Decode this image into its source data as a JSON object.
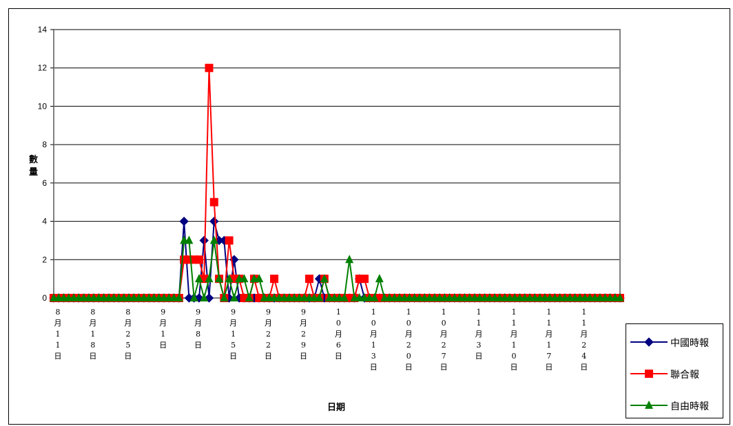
{
  "chart_data": {
    "type": "line",
    "title": "",
    "xlabel": "日期",
    "ylabel": "數量",
    "ylim": [
      0,
      14
    ],
    "yticks": [
      0,
      2,
      4,
      6,
      8,
      10,
      12,
      14
    ],
    "grid": true,
    "legend_position": "bottom-right",
    "x_tick_labels": [
      "8月11日",
      "8月18日",
      "8月25日",
      "9月1日",
      "9月8日",
      "9月15日",
      "9月22日",
      "9月29日",
      "10月6日",
      "10月13日",
      "10月20日",
      "10月27日",
      "11月3日",
      "11月10日",
      "11月17日",
      "11月24日"
    ],
    "x_start_date": "2007-08-11",
    "x_end_date": "2007-12-02",
    "series": [
      {
        "name": "中國時報",
        "color": "#000080",
        "marker": "diamond",
        "points": [
          {
            "date": "2007-09-06",
            "value": 4
          },
          {
            "date": "2007-09-07",
            "value": 0
          },
          {
            "date": "2007-09-10",
            "value": 3
          },
          {
            "date": "2007-09-12",
            "value": 4
          },
          {
            "date": "2007-09-13",
            "value": 3
          },
          {
            "date": "2007-09-14",
            "value": 3
          },
          {
            "date": "2007-09-15",
            "value": 0
          },
          {
            "date": "2007-09-16",
            "value": 2
          },
          {
            "date": "2007-09-17",
            "value": 0
          },
          {
            "date": "2007-10-03",
            "value": 1
          },
          {
            "date": "2007-10-04",
            "value": 0
          },
          {
            "date": "2007-10-11",
            "value": 1
          },
          {
            "date": "2007-10-12",
            "value": 0
          }
        ]
      },
      {
        "name": "聯合報",
        "color": "#ff0000",
        "marker": "square",
        "points": [
          {
            "date": "2007-09-05",
            "value": 0
          },
          {
            "date": "2007-09-06",
            "value": 2
          },
          {
            "date": "2007-09-07",
            "value": 2
          },
          {
            "date": "2007-09-08",
            "value": 2
          },
          {
            "date": "2007-09-09",
            "value": 2
          },
          {
            "date": "2007-09-10",
            "value": 1
          },
          {
            "date": "2007-09-11",
            "value": 12
          },
          {
            "date": "2007-09-12",
            "value": 5
          },
          {
            "date": "2007-09-13",
            "value": 1
          },
          {
            "date": "2007-09-14",
            "value": 0
          },
          {
            "date": "2007-09-15",
            "value": 3
          },
          {
            "date": "2007-09-16",
            "value": 1
          },
          {
            "date": "2007-09-17",
            "value": 1
          },
          {
            "date": "2007-09-18",
            "value": 0
          },
          {
            "date": "2007-09-20",
            "value": 1
          },
          {
            "date": "2007-09-21",
            "value": 0
          },
          {
            "date": "2007-09-24",
            "value": 1
          },
          {
            "date": "2007-09-25",
            "value": 0
          },
          {
            "date": "2007-10-01",
            "value": 1
          },
          {
            "date": "2007-10-02",
            "value": 0
          },
          {
            "date": "2007-10-04",
            "value": 1
          },
          {
            "date": "2007-10-05",
            "value": 0
          },
          {
            "date": "2007-10-11",
            "value": 1
          },
          {
            "date": "2007-10-12",
            "value": 1
          },
          {
            "date": "2007-10-13",
            "value": 0
          }
        ]
      },
      {
        "name": "自由時報",
        "color": "#008000",
        "marker": "triangle",
        "points": [
          {
            "date": "2007-09-05",
            "value": 0
          },
          {
            "date": "2007-09-06",
            "value": 3
          },
          {
            "date": "2007-09-07",
            "value": 3
          },
          {
            "date": "2007-09-08",
            "value": 0
          },
          {
            "date": "2007-09-09",
            "value": 1
          },
          {
            "date": "2007-09-10",
            "value": 0
          },
          {
            "date": "2007-09-11",
            "value": 1
          },
          {
            "date": "2007-09-12",
            "value": 3
          },
          {
            "date": "2007-09-13",
            "value": 1
          },
          {
            "date": "2007-09-14",
            "value": 0
          },
          {
            "date": "2007-09-15",
            "value": 1
          },
          {
            "date": "2007-09-16",
            "value": 0
          },
          {
            "date": "2007-09-17",
            "value": 1
          },
          {
            "date": "2007-09-18",
            "value": 1
          },
          {
            "date": "2007-09-19",
            "value": 0
          },
          {
            "date": "2007-09-20",
            "value": 1
          },
          {
            "date": "2007-09-21",
            "value": 1
          },
          {
            "date": "2007-09-22",
            "value": 0
          },
          {
            "date": "2007-10-04",
            "value": 1
          },
          {
            "date": "2007-10-05",
            "value": 0
          },
          {
            "date": "2007-10-09",
            "value": 2
          },
          {
            "date": "2007-10-10",
            "value": 0
          },
          {
            "date": "2007-10-15",
            "value": 1
          },
          {
            "date": "2007-10-16",
            "value": 0
          }
        ]
      }
    ]
  }
}
